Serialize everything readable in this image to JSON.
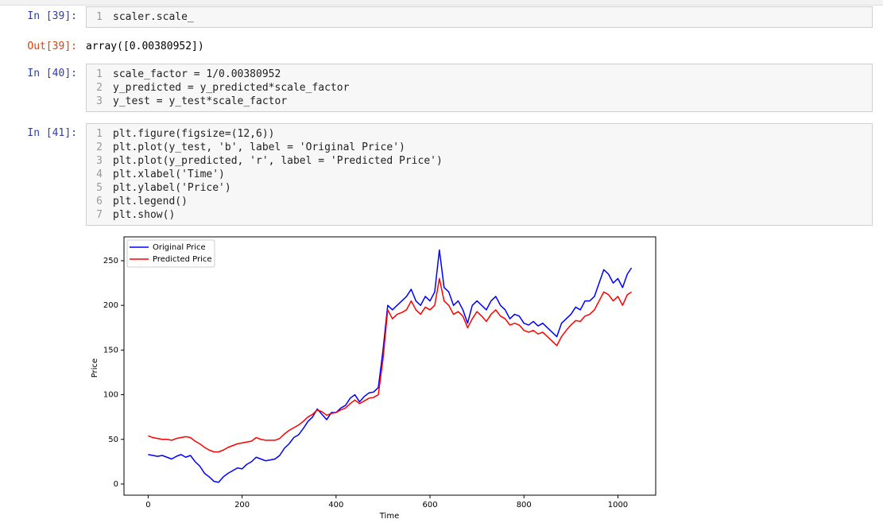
{
  "cells": [
    {
      "prompt": "In [39]:",
      "line_numbers": [
        1
      ],
      "lines": [
        "scaler.scale_"
      ],
      "output_prompt": "Out[39]:",
      "output": "array([0.00380952])"
    },
    {
      "prompt": "In [40]:",
      "line_numbers": [
        1,
        2,
        3
      ],
      "lines": [
        "scale_factor = 1/0.00380952",
        "y_predicted = y_predicted*scale_factor",
        "y_test = y_test*scale_factor"
      ]
    },
    {
      "prompt": "In [41]:",
      "line_numbers": [
        1,
        2,
        3,
        4,
        5,
        6,
        7
      ],
      "lines": [
        "plt.figure(figsize=(12,6))",
        "plt.plot(y_test, 'b', label = 'Original Price')",
        "plt.plot(y_predicted, 'r', label = 'Predicted Price')",
        "plt.xlabel('Time')",
        "plt.ylabel('Price')",
        "plt.legend()",
        "plt.show()"
      ]
    }
  ],
  "chart_data": {
    "type": "line",
    "xlabel": "Time",
    "ylabel": "Price",
    "x": [
      0,
      10,
      20,
      30,
      40,
      50,
      60,
      70,
      80,
      90,
      100,
      110,
      120,
      130,
      140,
      150,
      160,
      170,
      180,
      190,
      200,
      210,
      220,
      230,
      240,
      250,
      260,
      270,
      280,
      290,
      300,
      310,
      320,
      330,
      340,
      350,
      360,
      370,
      380,
      390,
      400,
      410,
      420,
      430,
      440,
      450,
      460,
      470,
      480,
      490,
      500,
      510,
      520,
      530,
      540,
      550,
      560,
      570,
      580,
      590,
      600,
      610,
      620,
      630,
      640,
      650,
      660,
      670,
      680,
      690,
      700,
      710,
      720,
      730,
      740,
      750,
      760,
      770,
      780,
      790,
      800,
      810,
      820,
      830,
      840,
      850,
      860,
      870,
      880,
      890,
      900,
      910,
      920,
      930,
      940,
      950,
      960,
      970,
      980,
      990,
      1000,
      1010,
      1020,
      1029
    ],
    "series": [
      {
        "name": "Original Price",
        "color": "#0000ff",
        "values": [
          33,
          32,
          31,
          32,
          30,
          28,
          31,
          33,
          30,
          32,
          25,
          20,
          12,
          8,
          3,
          2,
          8,
          12,
          15,
          18,
          17,
          22,
          25,
          30,
          28,
          26,
          27,
          28,
          32,
          40,
          45,
          52,
          55,
          62,
          70,
          75,
          84,
          78,
          72,
          80,
          80,
          85,
          88,
          96,
          100,
          92,
          98,
          102,
          103,
          108,
          150,
          200,
          195,
          200,
          205,
          210,
          218,
          205,
          200,
          210,
          205,
          215,
          262,
          220,
          215,
          200,
          205,
          195,
          180,
          200,
          205,
          200,
          195,
          205,
          210,
          200,
          195,
          185,
          190,
          188,
          180,
          178,
          182,
          177,
          180,
          175,
          170,
          165,
          180,
          185,
          190,
          198,
          195,
          205,
          205,
          210,
          225,
          240,
          235,
          225,
          230,
          220,
          235,
          242
        ]
      },
      {
        "name": "Predicted Price",
        "color": "#ff0000",
        "values": [
          54,
          52,
          51,
          50,
          50,
          49,
          51,
          52,
          53,
          52,
          48,
          45,
          41,
          38,
          36,
          36,
          38,
          41,
          43,
          45,
          46,
          47,
          48,
          52,
          50,
          49,
          49,
          49,
          51,
          56,
          60,
          63,
          66,
          70,
          75,
          78,
          83,
          81,
          77,
          79,
          80,
          83,
          85,
          90,
          94,
          90,
          93,
          96,
          97,
          100,
          140,
          195,
          185,
          190,
          192,
          195,
          205,
          195,
          190,
          198,
          195,
          200,
          230,
          205,
          200,
          190,
          193,
          188,
          175,
          185,
          193,
          188,
          182,
          190,
          195,
          188,
          185,
          178,
          180,
          178,
          172,
          170,
          172,
          168,
          170,
          165,
          160,
          155,
          165,
          172,
          178,
          183,
          182,
          188,
          190,
          195,
          205,
          215,
          212,
          205,
          210,
          200,
          212,
          215
        ]
      }
    ],
    "xlim": [
      -51.45,
      1080.45
    ],
    "ylim": [
      -12.5,
      276.7
    ],
    "xticks": [
      0,
      200,
      400,
      600,
      800,
      1000
    ],
    "yticks": [
      0,
      50,
      100,
      150,
      200,
      250
    ],
    "legend": "upper left"
  }
}
